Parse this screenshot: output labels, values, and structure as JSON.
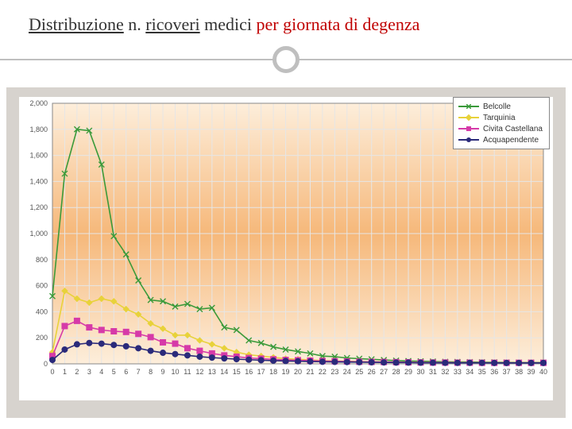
{
  "title": {
    "parts": [
      {
        "text": "Distribuzione",
        "style": "u"
      },
      {
        "text": " n. ",
        "style": ""
      },
      {
        "text": "ricoveri",
        "style": "u"
      },
      {
        "text": " medici ",
        "style": ""
      },
      {
        "text": "per giornata di degenza",
        "style": "red"
      }
    ],
    "fontsize": 22
  },
  "chart": {
    "type": "line",
    "xlim": [
      0,
      40
    ],
    "ylim": [
      0,
      2000
    ],
    "xtick_step": 1,
    "ytick_step": 200,
    "ylabels": [
      "0",
      "200",
      "400",
      "600",
      "800",
      "1,000",
      "1,200",
      "1,400",
      "1,600",
      "1,800",
      "2,000"
    ],
    "plot_bg_gradient": [
      "#fdeedb",
      "#f6b87a",
      "#fdeedb"
    ],
    "grid_color": "#e6e6e6",
    "axis_color": "#888888",
    "label_fontsize": 9,
    "line_width": 1.6,
    "marker_size": 3.5,
    "series": [
      {
        "name": "Belcolle",
        "color": "#3a9a3a",
        "marker": "x",
        "y": [
          520,
          1460,
          1800,
          1790,
          1530,
          980,
          840,
          640,
          490,
          480,
          440,
          460,
          420,
          430,
          280,
          260,
          180,
          160,
          130,
          110,
          95,
          80,
          60,
          55,
          45,
          40,
          35,
          30,
          25,
          22,
          20,
          18,
          16,
          15,
          14,
          13,
          12,
          11,
          10,
          10,
          10
        ]
      },
      {
        "name": "Tarquinia",
        "color": "#e8d23a",
        "marker": "diamond",
        "y": [
          90,
          560,
          500,
          470,
          500,
          480,
          420,
          380,
          310,
          270,
          220,
          220,
          180,
          150,
          120,
          90,
          70,
          60,
          50,
          40,
          35,
          30,
          25,
          22,
          20,
          18,
          16,
          15,
          14,
          13,
          12,
          11,
          10,
          10,
          9,
          9,
          8,
          8,
          8,
          8,
          8
        ]
      },
      {
        "name": "Civita Castellana",
        "color": "#d63aa8",
        "marker": "square",
        "y": [
          60,
          290,
          330,
          280,
          260,
          250,
          245,
          230,
          205,
          165,
          155,
          120,
          100,
          80,
          65,
          55,
          45,
          40,
          35,
          30,
          28,
          25,
          22,
          20,
          18,
          16,
          15,
          14,
          13,
          12,
          11,
          10,
          10,
          9,
          9,
          8,
          8,
          8,
          8,
          8,
          8
        ]
      },
      {
        "name": "Acquapendente",
        "color": "#2a2a7a",
        "marker": "circle",
        "y": [
          30,
          110,
          150,
          160,
          155,
          145,
          135,
          120,
          100,
          85,
          75,
          65,
          55,
          48,
          42,
          36,
          32,
          28,
          25,
          22,
          20,
          18,
          16,
          15,
          14,
          13,
          12,
          11,
          10,
          10,
          9,
          9,
          8,
          8,
          8,
          8,
          7,
          7,
          7,
          7,
          7
        ]
      }
    ],
    "legend": {
      "position": "top-right",
      "fontsize": 10,
      "border_color": "#888"
    }
  },
  "colors": {
    "slide_bg": "#ffffff",
    "chart_panel_bg": "#d7d3ce",
    "divider": "#bfbfbf"
  }
}
